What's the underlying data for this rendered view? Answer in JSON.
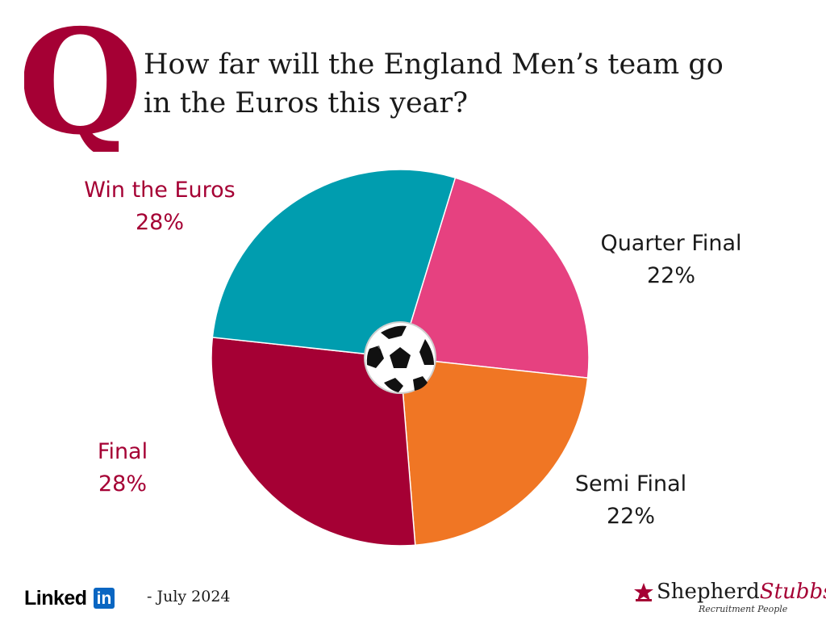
{
  "header": {
    "q_letter": "Q",
    "question_line1": "How far will the England Men’s team go",
    "question_line2": "in the Euros this year?"
  },
  "colors": {
    "q_logo": "#a50034",
    "win_the_euros": "#009daf",
    "quarter_final": "#e64180",
    "semi_final": "#f07624",
    "final": "#a50034",
    "label_dark": "#1a1a1a"
  },
  "chart_data": {
    "type": "pie",
    "center_icon": "football-icon",
    "slices": [
      {
        "label": "Quarter Final",
        "value": 22,
        "value_label": "22%",
        "color": "#e64180"
      },
      {
        "label": "Semi Final",
        "value": 22,
        "value_label": "22%",
        "color": "#f07624"
      },
      {
        "label": "Final",
        "value": 28,
        "value_label": "28%",
        "color": "#a50034"
      },
      {
        "label": "Win the Euros",
        "value": 28,
        "value_label": "28%",
        "color": "#009daf"
      }
    ]
  },
  "footer": {
    "linkedin_word": "Linked",
    "linkedin_in": "in",
    "date": "- July 2024",
    "brand_part1": "Shepherd",
    "brand_part2": "Stubbs",
    "brand_tagline": "Recruitment People"
  }
}
